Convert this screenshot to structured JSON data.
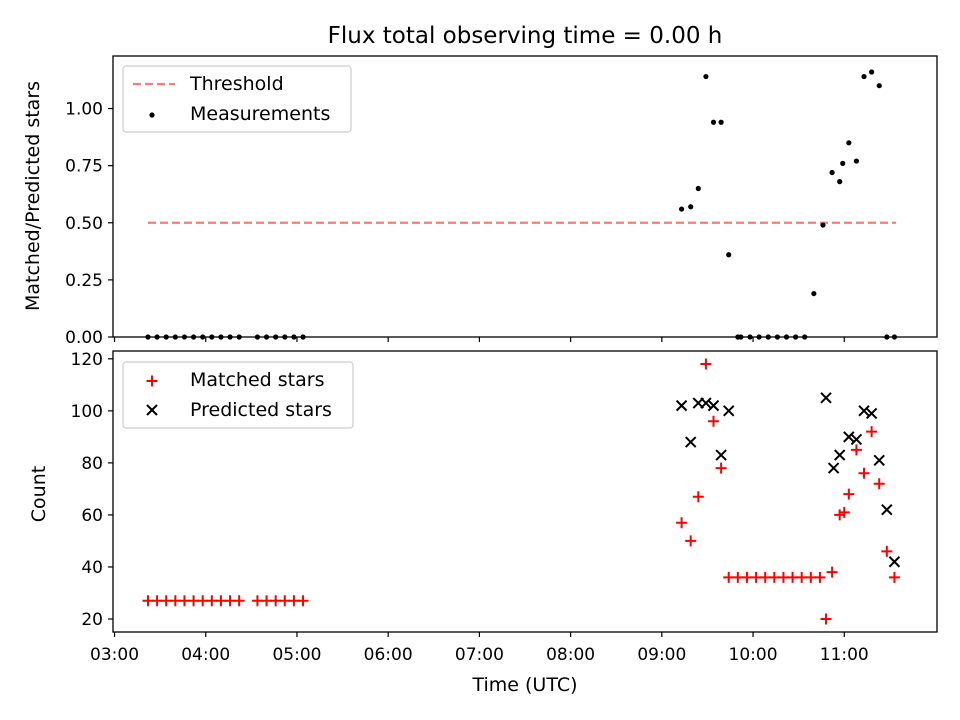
{
  "chart_data": [
    {
      "type": "scatter",
      "title": "Flux total observing time = 0.00 h",
      "ylabel": "Matched/Predicted stars",
      "xlabel": "",
      "xlim": [
        "03:00",
        "12:00"
      ],
      "ylim": [
        0,
        1.2
      ],
      "yticks": [
        "0.00",
        "0.25",
        "0.50",
        "0.75",
        "1.00"
      ],
      "grid": false,
      "legend_position": "top-left",
      "threshold": {
        "name": "Threshold",
        "value": 0.5,
        "x_range": [
          "03:22",
          "11:34"
        ],
        "color": "#ff7777",
        "style": "dashed"
      },
      "series": [
        {
          "name": "Measurements",
          "color": "#000000",
          "marker": "dot",
          "x": [
            "03:22",
            "03:28",
            "03:34",
            "03:40",
            "03:46",
            "03:52",
            "03:58",
            "04:04",
            "04:10",
            "04:16",
            "04:22",
            "04:34",
            "04:40",
            "04:46",
            "04:52",
            "04:58",
            "05:04",
            "09:13",
            "09:19",
            "09:24",
            "09:29",
            "09:34",
            "09:39",
            "09:44",
            "09:50",
            "09:52",
            "09:58",
            "10:04",
            "10:10",
            "10:16",
            "10:22",
            "10:28",
            "10:34",
            "10:40",
            "10:46",
            "10:52",
            "10:57",
            "10:59",
            "11:03",
            "11:08",
            "11:13",
            "11:18",
            "11:23",
            "11:28",
            "11:33"
          ],
          "y": [
            0,
            0,
            0,
            0,
            0,
            0,
            0,
            0,
            0,
            0,
            0,
            0,
            0,
            0,
            0,
            0,
            0,
            0.56,
            0.57,
            0.65,
            1.14,
            0.94,
            0.94,
            0.36,
            0,
            0,
            0,
            0,
            0,
            0,
            0,
            0,
            0,
            0.19,
            0.49,
            0.72,
            0.68,
            0.76,
            0.85,
            0.77,
            1.14,
            1.16,
            1.1,
            0,
            0
          ]
        }
      ]
    },
    {
      "type": "scatter",
      "title": "",
      "xlabel": "Time (UTC)",
      "ylabel": "Count",
      "xlim": [
        "03:00",
        "12:00"
      ],
      "ylim": [
        15,
        123
      ],
      "yticks": [
        "20",
        "40",
        "60",
        "80",
        "100",
        "120"
      ],
      "xticks": [
        "03:00",
        "04:00",
        "05:00",
        "06:00",
        "07:00",
        "08:00",
        "09:00",
        "10:00",
        "11:00"
      ],
      "grid": false,
      "legend_position": "top-left",
      "series": [
        {
          "name": "Matched stars",
          "color": "#ff0000",
          "marker": "plus",
          "x": [
            "03:22",
            "03:28",
            "03:34",
            "03:40",
            "03:46",
            "03:52",
            "03:58",
            "04:04",
            "04:10",
            "04:16",
            "04:22",
            "04:34",
            "04:40",
            "04:46",
            "04:52",
            "04:58",
            "05:04",
            "09:13",
            "09:19",
            "09:24",
            "09:29",
            "09:34",
            "09:39",
            "09:44",
            "09:50",
            "09:56",
            "10:02",
            "10:08",
            "10:14",
            "10:20",
            "10:26",
            "10:32",
            "10:38",
            "10:44",
            "10:48",
            "10:52",
            "10:57",
            "11:00",
            "11:03",
            "11:08",
            "11:13",
            "11:18",
            "11:23",
            "11:28",
            "11:33"
          ],
          "y": [
            27,
            27,
            27,
            27,
            27,
            27,
            27,
            27,
            27,
            27,
            27,
            27,
            27,
            27,
            27,
            27,
            27,
            57,
            50,
            67,
            118,
            96,
            78,
            36,
            36,
            36,
            36,
            36,
            36,
            36,
            36,
            36,
            36,
            36,
            20,
            38,
            60,
            61,
            68,
            85,
            76,
            92,
            72,
            46,
            36
          ]
        },
        {
          "name": "Predicted stars",
          "color": "#000000",
          "marker": "x",
          "x": [
            "09:13",
            "09:19",
            "09:24",
            "09:29",
            "09:34",
            "09:39",
            "09:44",
            "10:48",
            "10:53",
            "10:57",
            "11:03",
            "11:08",
            "11:13",
            "11:18",
            "11:23",
            "11:28",
            "11:33"
          ],
          "y": [
            102,
            88,
            103,
            103,
            102,
            83,
            100,
            105,
            78,
            83,
            90,
            89,
            100,
            99,
            81,
            62,
            42
          ]
        }
      ]
    }
  ]
}
